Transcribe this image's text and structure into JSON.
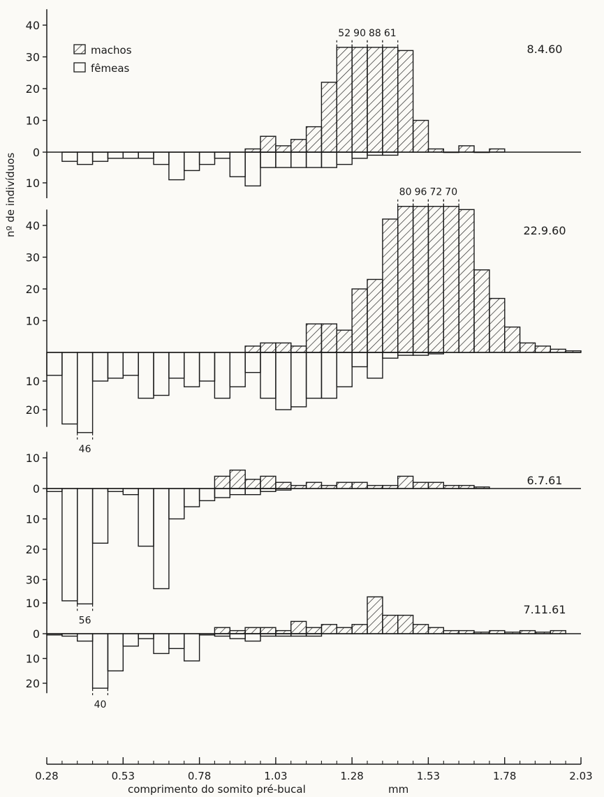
{
  "chart_data": {
    "type": "bar",
    "subtype": "back-to-back histogram (males above, females below baseline)",
    "xlabel": "comprimento do somito pré-bucal",
    "xunit": "mm",
    "ylabel": "nº de indivíduos",
    "xlim": [
      0.28,
      2.03
    ],
    "x_ticks": [
      "0.28",
      "0.53",
      "0.78",
      "1.03",
      "1.28",
      "1.53",
      "1.78",
      "2.03"
    ],
    "bin_width": 0.05,
    "legend": {
      "position": "top-left",
      "entries": [
        {
          "name": "machos",
          "pattern": "hatched"
        },
        {
          "name": "fêmeas",
          "pattern": "open"
        }
      ]
    },
    "panels": [
      {
        "date": "8.4.60",
        "up_ticks": [
          0,
          10,
          20,
          30,
          40
        ],
        "down_ticks": [
          10
        ],
        "up_ylim": 45,
        "down_ylim": 15,
        "males": [
          [
            0.93,
            1
          ],
          [
            0.98,
            5
          ],
          [
            1.03,
            2
          ],
          [
            1.08,
            4
          ],
          [
            1.13,
            8
          ],
          [
            1.18,
            22
          ],
          [
            1.23,
            52
          ],
          [
            1.28,
            90
          ],
          [
            1.33,
            88
          ],
          [
            1.38,
            61
          ],
          [
            1.43,
            32
          ],
          [
            1.48,
            10
          ],
          [
            1.53,
            1
          ],
          [
            1.58,
            0
          ],
          [
            1.63,
            2
          ],
          [
            1.68,
            0
          ],
          [
            1.73,
            1
          ]
        ],
        "females": [
          [
            0.33,
            3
          ],
          [
            0.38,
            4
          ],
          [
            0.43,
            3
          ],
          [
            0.48,
            2
          ],
          [
            0.53,
            2
          ],
          [
            0.58,
            2
          ],
          [
            0.63,
            4
          ],
          [
            0.68,
            9
          ],
          [
            0.73,
            6
          ],
          [
            0.78,
            4
          ],
          [
            0.83,
            2
          ],
          [
            0.88,
            8
          ],
          [
            0.93,
            11
          ],
          [
            0.98,
            5
          ],
          [
            1.03,
            5
          ],
          [
            1.08,
            5
          ],
          [
            1.13,
            5
          ],
          [
            1.18,
            5
          ],
          [
            1.23,
            4
          ],
          [
            1.28,
            2
          ],
          [
            1.33,
            1
          ],
          [
            1.38,
            1
          ]
        ],
        "clip_up": 33,
        "annotations": [
          {
            "text": "52",
            "x": 1.23,
            "dir": "up"
          },
          {
            "text": "90",
            "x": 1.28,
            "dir": "up"
          },
          {
            "text": "88",
            "x": 1.33,
            "dir": "up"
          },
          {
            "text": "61",
            "x": 1.38,
            "dir": "up"
          }
        ]
      },
      {
        "date": "22.9.60",
        "up_ticks": [
          10,
          20,
          30,
          40
        ],
        "down_ticks": [
          10,
          20
        ],
        "up_ylim": 45,
        "down_ylim": 26,
        "males": [
          [
            0.93,
            2
          ],
          [
            0.98,
            3
          ],
          [
            1.03,
            3
          ],
          [
            1.08,
            2
          ],
          [
            1.13,
            9
          ],
          [
            1.18,
            9
          ],
          [
            1.23,
            7
          ],
          [
            1.28,
            20
          ],
          [
            1.33,
            23
          ],
          [
            1.38,
            42
          ],
          [
            1.43,
            80
          ],
          [
            1.48,
            96
          ],
          [
            1.53,
            72
          ],
          [
            1.58,
            70
          ],
          [
            1.63,
            45
          ],
          [
            1.68,
            26
          ],
          [
            1.73,
            17
          ],
          [
            1.78,
            8
          ],
          [
            1.83,
            3
          ],
          [
            1.88,
            2
          ],
          [
            1.93,
            1
          ],
          [
            1.98,
            0.5
          ]
        ],
        "females": [
          [
            0.28,
            8
          ],
          [
            0.33,
            25
          ],
          [
            0.38,
            46
          ],
          [
            0.43,
            10
          ],
          [
            0.48,
            9
          ],
          [
            0.53,
            8
          ],
          [
            0.58,
            16
          ],
          [
            0.63,
            15
          ],
          [
            0.68,
            9
          ],
          [
            0.73,
            12
          ],
          [
            0.78,
            10
          ],
          [
            0.83,
            16
          ],
          [
            0.88,
            12
          ],
          [
            0.93,
            7
          ],
          [
            0.98,
            16
          ],
          [
            1.03,
            20
          ],
          [
            1.08,
            19
          ],
          [
            1.13,
            16
          ],
          [
            1.18,
            16
          ],
          [
            1.23,
            12
          ],
          [
            1.28,
            5
          ],
          [
            1.33,
            9
          ],
          [
            1.38,
            2
          ],
          [
            1.43,
            1
          ],
          [
            1.48,
            1
          ],
          [
            1.53,
            0.5
          ]
        ],
        "clip_up": 46,
        "clip_down": 28,
        "annotations": [
          {
            "text": "80",
            "x": 1.43,
            "dir": "up"
          },
          {
            "text": "96",
            "x": 1.48,
            "dir": "up"
          },
          {
            "text": "72",
            "x": 1.53,
            "dir": "up"
          },
          {
            "text": "70",
            "x": 1.58,
            "dir": "up"
          },
          {
            "text": "46",
            "x": 0.38,
            "dir": "down"
          }
        ]
      },
      {
        "date": "6.7.61",
        "up_ticks": [
          0,
          10
        ],
        "down_ticks": [
          10,
          20,
          30
        ],
        "up_ylim": 12,
        "down_ylim": 40,
        "males": [
          [
            0.83,
            4
          ],
          [
            0.88,
            6
          ],
          [
            0.93,
            3
          ],
          [
            0.98,
            4
          ],
          [
            1.03,
            2
          ],
          [
            1.08,
            1
          ],
          [
            1.13,
            2
          ],
          [
            1.18,
            1
          ],
          [
            1.23,
            2
          ],
          [
            1.28,
            2
          ],
          [
            1.33,
            1
          ],
          [
            1.38,
            1
          ],
          [
            1.43,
            4
          ],
          [
            1.48,
            2
          ],
          [
            1.53,
            2
          ],
          [
            1.58,
            1
          ],
          [
            1.63,
            1
          ],
          [
            1.68,
            0.5
          ]
        ],
        "females": [
          [
            0.28,
            1
          ],
          [
            0.33,
            37
          ],
          [
            0.38,
            56
          ],
          [
            0.43,
            18
          ],
          [
            0.48,
            1
          ],
          [
            0.53,
            2
          ],
          [
            0.58,
            19
          ],
          [
            0.63,
            33
          ],
          [
            0.68,
            10
          ],
          [
            0.73,
            6
          ],
          [
            0.78,
            4
          ],
          [
            0.83,
            3
          ],
          [
            0.88,
            2
          ],
          [
            0.93,
            2
          ],
          [
            0.98,
            1
          ],
          [
            1.03,
            0.5
          ]
        ],
        "clip_down": 38,
        "annotations": [
          {
            "text": "56",
            "x": 0.38,
            "dir": "down"
          }
        ]
      },
      {
        "date": "7.11.61",
        "up_ticks": [
          0,
          10
        ],
        "down_ticks": [
          10,
          20
        ],
        "up_ylim": 17,
        "down_ylim": 24,
        "males": [
          [
            0.83,
            2
          ],
          [
            0.88,
            1
          ],
          [
            0.93,
            2
          ],
          [
            0.98,
            2
          ],
          [
            1.03,
            1
          ],
          [
            1.08,
            4
          ],
          [
            1.13,
            2
          ],
          [
            1.18,
            3
          ],
          [
            1.23,
            2
          ],
          [
            1.28,
            3
          ],
          [
            1.33,
            12
          ],
          [
            1.38,
            6
          ],
          [
            1.43,
            6
          ],
          [
            1.48,
            3
          ],
          [
            1.53,
            2
          ],
          [
            1.58,
            1
          ],
          [
            1.63,
            1
          ],
          [
            1.68,
            0.5
          ],
          [
            1.73,
            1
          ],
          [
            1.78,
            0.5
          ],
          [
            1.83,
            1
          ],
          [
            1.88,
            0.5
          ],
          [
            1.93,
            1
          ]
        ],
        "females": [
          [
            0.28,
            0.5
          ],
          [
            0.33,
            1
          ],
          [
            0.38,
            3
          ],
          [
            0.43,
            40
          ],
          [
            0.48,
            15
          ],
          [
            0.53,
            5
          ],
          [
            0.58,
            2
          ],
          [
            0.63,
            8
          ],
          [
            0.68,
            6
          ],
          [
            0.73,
            11
          ],
          [
            0.78,
            0.5
          ],
          [
            0.83,
            1
          ],
          [
            0.88,
            2
          ],
          [
            0.93,
            3
          ],
          [
            0.98,
            1
          ],
          [
            1.03,
            1
          ],
          [
            1.08,
            1
          ],
          [
            1.13,
            1
          ]
        ],
        "clip_down": 22,
        "annotations": [
          {
            "text": "40",
            "x": 0.43,
            "dir": "down"
          }
        ]
      }
    ]
  }
}
